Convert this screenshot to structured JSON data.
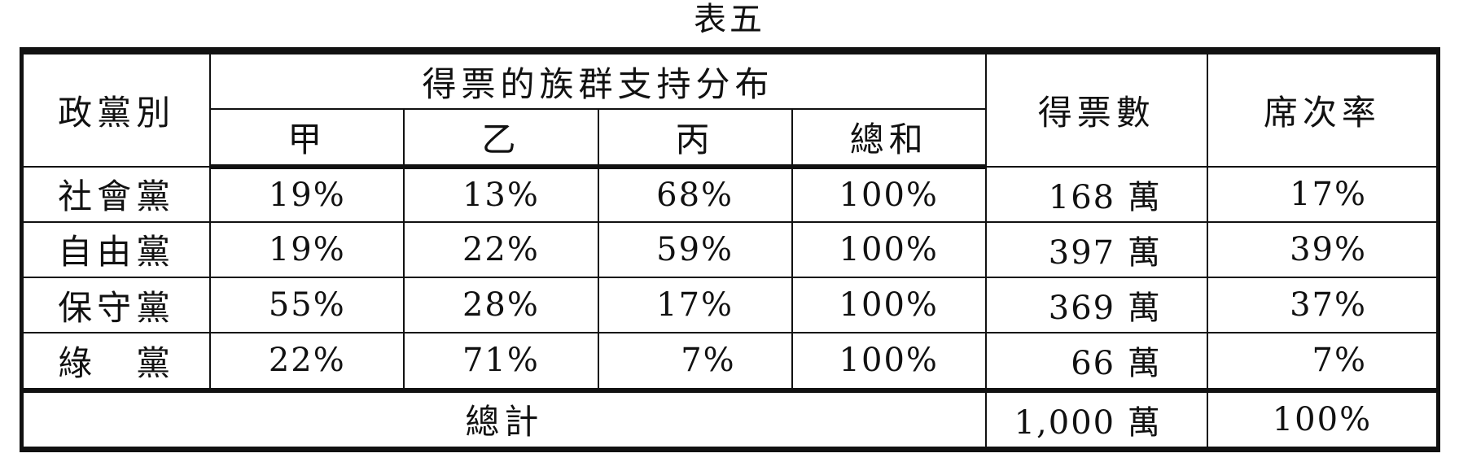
{
  "title": "表五",
  "headers": {
    "party": "政黨別",
    "support_group": "得票的族群支持分布",
    "groups": [
      "甲",
      "乙",
      "丙",
      "總和"
    ],
    "votes": "得票數",
    "seat_rate": "席次率"
  },
  "rows": [
    {
      "party": "社會黨",
      "a": "19%",
      "b": "13%",
      "c": "68%",
      "total": "100%",
      "votes": "168 萬",
      "seat_rate": "17%"
    },
    {
      "party": "自由黨",
      "a": "19%",
      "b": "22%",
      "c": "59%",
      "total": "100%",
      "votes": "397 萬",
      "seat_rate": "39%"
    },
    {
      "party": "保守黨",
      "a": "55%",
      "b": "28%",
      "c": "17%",
      "total": "100%",
      "votes": "369 萬",
      "seat_rate": "37%"
    },
    {
      "party": "綠　黨",
      "a": "22%",
      "b": "71%",
      "c": "7%",
      "total": "100%",
      "votes": "66 萬",
      "seat_rate": "7%"
    }
  ],
  "footer": {
    "label": "總計",
    "votes": "1,000 萬",
    "seat_rate": "100%"
  }
}
